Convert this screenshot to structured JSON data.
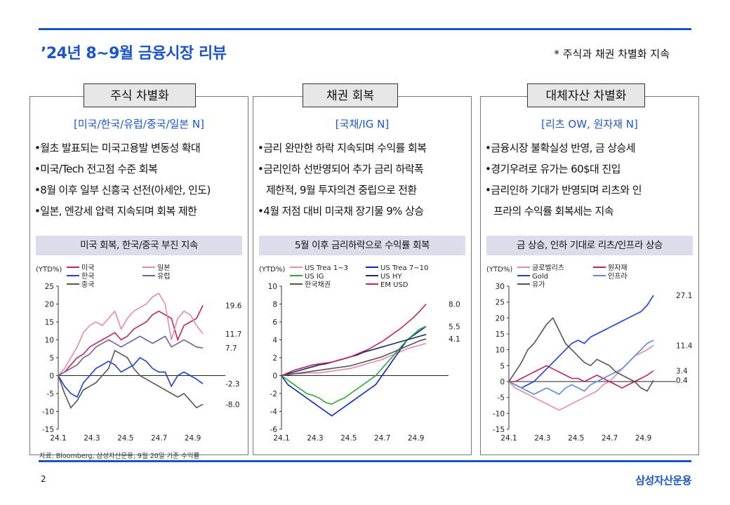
{
  "header": {
    "title": "’24년 8~9월 금융시장 리뷰",
    "note": "* 주식과 채권 차별화 지속"
  },
  "panels": [
    {
      "tab": "주식 차별화",
      "bracket": "[미국/한국/유럽/중국/일본 N]",
      "bullets": [
        [
          "•월초 발표되는 미국고용발 변동성 확대"
        ],
        [
          "•미국/Tech 전고점 수준 회복"
        ],
        [
          "•8월 이후 일부 신흥국 선전(아세안, 인도)"
        ],
        [
          "•일본, 엔강세 압력 지속되며 회복 제한"
        ]
      ],
      "chart_title": "미국 회복, 한국/중국 부진 지속"
    },
    {
      "tab": "채권 회복",
      "bracket": "[국채/IG N]",
      "bullets": [
        [
          "•금리 완만한 하락 지속되며 수익률 회복"
        ],
        [
          "•금리인하 선반영되어 추가 금리 하락폭",
          "제한적, 9월 투자의견 중립으로 전환"
        ],
        [
          "•4월 저점 대비 미국채 장기물 9% 상승"
        ]
      ],
      "chart_title": "5월 이후 금리하락으로 수익률 회복"
    },
    {
      "tab": "대체자산 차별화",
      "bracket": "[리츠 OW, 원자재 N]",
      "bullets": [
        [
          "•금융시장 불확실성 반영, 금 상승세"
        ],
        [
          "•경기우려로 유가는 60$대 진입"
        ],
        [
          "•금리인하 기대가 반영되며 리츠와 인",
          "프라의 수익률 회복세는 지속"
        ]
      ],
      "chart_title": "금 상승, 인하 기대로 리츠/인프라 상승"
    }
  ],
  "chart_data": [
    {
      "type": "line",
      "ylabel": "(YTD%)",
      "ylim": [
        -15,
        25
      ],
      "yticks": [
        -15,
        -10,
        -5,
        0,
        5,
        10,
        15,
        20,
        25
      ],
      "xticks": [
        "24.1",
        "24.3",
        "24.5",
        "24.7",
        "24.9"
      ],
      "series": [
        {
          "name": "미국",
          "color": "#c0245c",
          "end": 19.6,
          "values": [
            0,
            1,
            3,
            5,
            6,
            8,
            9,
            10,
            11,
            12,
            10,
            11,
            13,
            14,
            15,
            17,
            18,
            17,
            16,
            10,
            14,
            15,
            16,
            19.6
          ]
        },
        {
          "name": "일본",
          "color": "#e88aa4",
          "end": 11.7,
          "values": [
            0,
            2,
            5,
            8,
            12,
            14,
            15,
            14,
            16,
            18,
            13,
            16,
            18,
            19,
            20,
            22,
            23,
            20,
            10,
            16,
            18,
            17,
            14,
            11.7
          ]
        },
        {
          "name": "한국",
          "color": "#1a3fd8",
          "end": -2.3,
          "values": [
            0,
            -3,
            -5,
            -6,
            -2,
            0,
            2,
            3,
            4,
            3,
            1,
            2,
            3,
            5,
            4,
            2,
            1,
            1,
            -3,
            0,
            1,
            0,
            -1,
            -2.3
          ]
        },
        {
          "name": "유럽",
          "color": "#7060a0",
          "end": 7.7,
          "values": [
            0,
            1,
            2,
            3,
            5,
            6,
            8,
            9,
            10,
            9,
            8,
            9,
            10,
            11,
            10,
            9,
            10,
            11,
            8,
            9,
            10,
            9,
            8,
            7.7
          ]
        },
        {
          "name": "중국",
          "color": "#555555",
          "end": -8.0,
          "values": [
            0,
            -5,
            -9,
            -7,
            -4,
            -3,
            -2,
            0,
            2,
            7,
            6,
            5,
            2,
            0,
            -1,
            -2,
            -3,
            -4,
            -5,
            -6,
            -5,
            -7,
            -9,
            -8.0
          ]
        }
      ],
      "end_labels": [
        "19.6",
        "11.7",
        "7.7",
        "-2.3",
        "-8.0"
      ]
    },
    {
      "type": "line",
      "ylabel": "(YTD%)",
      "ylim": [
        -6,
        10
      ],
      "yticks": [
        -6,
        -4,
        -2,
        0,
        2,
        4,
        6,
        8,
        10
      ],
      "xticks": [
        "24.1",
        "24.3",
        "24.5",
        "24.7",
        "24.9"
      ],
      "series": [
        {
          "name": "US Trea 1~3",
          "color": "#e88aa4",
          "values": [
            0,
            0.1,
            0.2,
            0.2,
            0.3,
            0.3,
            0.3,
            0.4,
            0.5,
            0.6,
            0.7,
            0.8,
            1.0,
            1.2,
            1.4,
            1.6,
            1.8,
            2.1,
            2.4,
            2.7,
            3.0,
            3.2,
            3.4,
            3.6
          ]
        },
        {
          "name": "US Trea 7~10",
          "color": "#0a22c8",
          "values": [
            0,
            -1,
            -1.5,
            -2,
            -2.5,
            -3,
            -3.5,
            -4,
            -4.5,
            -4,
            -3.5,
            -3,
            -2.5,
            -2,
            -1.5,
            -1,
            0,
            1,
            2,
            3,
            4,
            4.5,
            5,
            5.5
          ]
        },
        {
          "name": "US IG",
          "color": "#2aa83a",
          "values": [
            0,
            -0.5,
            -1,
            -1.5,
            -2,
            -2.2,
            -2.5,
            -3,
            -3.2,
            -2.8,
            -2.5,
            -2,
            -1.5,
            -1,
            -0.5,
            0,
            0.8,
            1.6,
            2.4,
            3.2,
            4.0,
            4.6,
            5.2,
            5.5
          ]
        },
        {
          "name": "US HY",
          "color": "#1a2a6a",
          "values": [
            0,
            0.2,
            0.4,
            0.6,
            0.8,
            1.0,
            1.2,
            1.3,
            1.5,
            1.7,
            1.9,
            2.1,
            2.3,
            2.6,
            2.8,
            3.0,
            3.2,
            3.4,
            3.6,
            3.8,
            4.0,
            4.2,
            4.4,
            4.6
          ]
        },
        {
          "name": "한국채권",
          "color": "#555555",
          "values": [
            0,
            0.1,
            0.2,
            0.3,
            0.4,
            0.5,
            0.6,
            0.7,
            0.8,
            0.9,
            1.0,
            1.1,
            1.3,
            1.5,
            1.7,
            1.9,
            2.1,
            2.4,
            2.7,
            3.0,
            3.3,
            3.6,
            3.9,
            4.1
          ]
        },
        {
          "name": "EM USD",
          "color": "#c0245c",
          "values": [
            0,
            0.3,
            0.6,
            0.8,
            1.0,
            1.2,
            1.3,
            1.4,
            1.5,
            1.7,
            1.9,
            2.1,
            2.4,
            2.7,
            3.0,
            3.4,
            3.8,
            4.3,
            4.8,
            5.3,
            5.9,
            6.5,
            7.2,
            8.0
          ]
        }
      ],
      "end_labels": [
        "8.0",
        "5.5",
        "4.1"
      ]
    },
    {
      "type": "line",
      "ylabel": "(YTD%)",
      "ylim": [
        -15,
        30
      ],
      "yticks": [
        -15,
        -10,
        -5,
        0,
        5,
        10,
        15,
        20,
        25,
        30
      ],
      "xticks": [
        "24.1",
        "24.3",
        "24.5",
        "24.7",
        "24.9"
      ],
      "series": [
        {
          "name": "글로벌리츠",
          "color": "#e88aa4",
          "values": [
            0,
            -2,
            -3,
            -4,
            -5,
            -6,
            -7,
            -8,
            -9,
            -8,
            -7,
            -6,
            -5,
            -4,
            -3,
            -1,
            0,
            2,
            4,
            6,
            8,
            9,
            10,
            11.4
          ]
        },
        {
          "name": "원자재",
          "color": "#c0245c",
          "values": [
            0,
            0,
            1,
            2,
            3,
            4,
            5,
            4,
            3,
            2,
            1,
            1,
            0,
            1,
            2,
            1,
            0,
            -1,
            -2,
            -1,
            0,
            1,
            2,
            3.4
          ]
        },
        {
          "name": "Gold",
          "color": "#1a3fd8",
          "values": [
            0,
            -1,
            -2,
            -1,
            0,
            2,
            4,
            6,
            8,
            10,
            12,
            13,
            12,
            14,
            15,
            16,
            17,
            18,
            19,
            20,
            21,
            22,
            24,
            27.1
          ]
        },
        {
          "name": "인프라",
          "color": "#5a8ae0",
          "values": [
            0,
            -1,
            -2,
            -3,
            -4,
            -3,
            -2,
            -3,
            -4,
            -2,
            -1,
            -2,
            -3,
            -1,
            0,
            1,
            2,
            3,
            4,
            6,
            8,
            10,
            12,
            13
          ]
        },
        {
          "name": "유가",
          "color": "#555555",
          "values": [
            0,
            3,
            6,
            10,
            12,
            15,
            18,
            20,
            16,
            12,
            10,
            8,
            6,
            5,
            7,
            6,
            5,
            3,
            2,
            1,
            0,
            -2,
            -3,
            0.4
          ]
        }
      ],
      "end_labels": [
        "27.1",
        "11.4",
        "3.4",
        "0.4"
      ]
    }
  ],
  "footer": {
    "source": "자료: Bloomberg, 삼성자산운용, 9월 20일 기준 수익률",
    "page": "2",
    "brand": "삼성자산운용"
  }
}
